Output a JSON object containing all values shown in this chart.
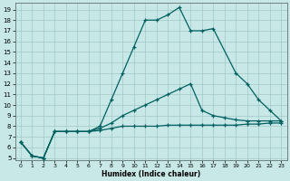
{
  "xlabel": "Humidex (Indice chaleur)",
  "background_color": "#c8e8e8",
  "grid_color": "#a0c8c8",
  "line_color": "#006060",
  "xlim": [
    -0.5,
    23.5
  ],
  "ylim": [
    4.8,
    19.6
  ],
  "yticks": [
    5,
    6,
    7,
    8,
    9,
    10,
    11,
    12,
    13,
    14,
    15,
    16,
    17,
    18,
    19
  ],
  "xticks": [
    0,
    1,
    2,
    3,
    4,
    5,
    6,
    7,
    8,
    9,
    10,
    11,
    12,
    13,
    14,
    15,
    16,
    17,
    18,
    19,
    20,
    21,
    22,
    23
  ],
  "line1_x": [
    0,
    1,
    2,
    3,
    4,
    5,
    6,
    7,
    8,
    9,
    10,
    11,
    12,
    13,
    14,
    15,
    16,
    17,
    19,
    20,
    21,
    22,
    23
  ],
  "line1_y": [
    6.5,
    5.2,
    5.0,
    7.5,
    7.5,
    7.5,
    7.5,
    8.0,
    10.5,
    13.0,
    15.5,
    18.0,
    18.0,
    18.5,
    19.2,
    17.0,
    17.0,
    17.2,
    13.0,
    12.0,
    10.5,
    9.5,
    8.5
  ],
  "line2_x": [
    0,
    1,
    2,
    3,
    4,
    5,
    6,
    7,
    8,
    9,
    10,
    11,
    12,
    13,
    14,
    15,
    16,
    17,
    18,
    19,
    20,
    21,
    22,
    23
  ],
  "line2_y": [
    6.5,
    5.2,
    5.0,
    7.5,
    7.5,
    7.5,
    7.5,
    7.6,
    7.8,
    8.0,
    8.0,
    8.0,
    8.0,
    8.1,
    8.1,
    8.1,
    8.1,
    8.1,
    8.1,
    8.1,
    8.2,
    8.2,
    8.3,
    8.3
  ],
  "line3_x": [
    0,
    1,
    2,
    3,
    4,
    5,
    6,
    7,
    8,
    9,
    10,
    11,
    12,
    13,
    14,
    15,
    16,
    17,
    18,
    19,
    20,
    21,
    22,
    23
  ],
  "line3_y": [
    6.5,
    5.2,
    5.0,
    7.5,
    7.5,
    7.5,
    7.5,
    7.8,
    8.3,
    9.0,
    9.5,
    10.0,
    10.5,
    11.0,
    11.5,
    12.0,
    9.5,
    9.0,
    8.8,
    8.6,
    8.5,
    8.5,
    8.5,
    8.5
  ]
}
